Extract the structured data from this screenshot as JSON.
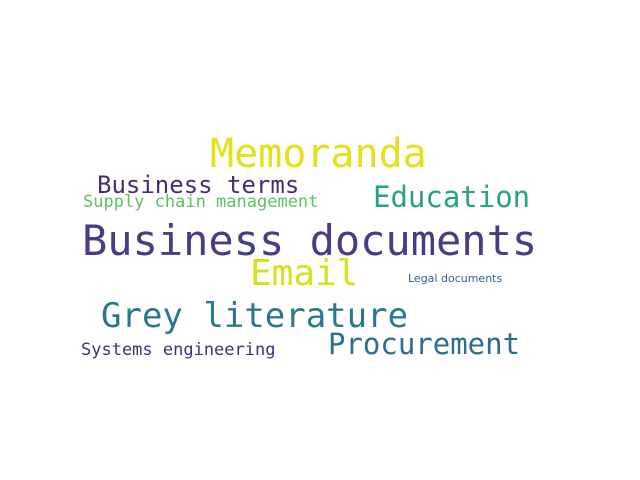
{
  "words": [
    {
      "text": "Memoranda",
      "color": "#e4e01a"
    },
    {
      "text": "Business terms",
      "color": "#482d71"
    },
    {
      "text": "Education",
      "color": "#26a383"
    },
    {
      "text": "Supply chain management",
      "color": "#5dc063"
    },
    {
      "text": "Business documents",
      "color": "#433e85"
    },
    {
      "text": "Email",
      "color": "#d5e21a"
    },
    {
      "text": "Legal documents",
      "color": "#34618d"
    },
    {
      "text": "Grey literature",
      "color": "#2a788e"
    },
    {
      "text": "Procurement",
      "color": "#2e6d8e"
    },
    {
      "text": "Systems engineering",
      "color": "#472c7a"
    }
  ]
}
